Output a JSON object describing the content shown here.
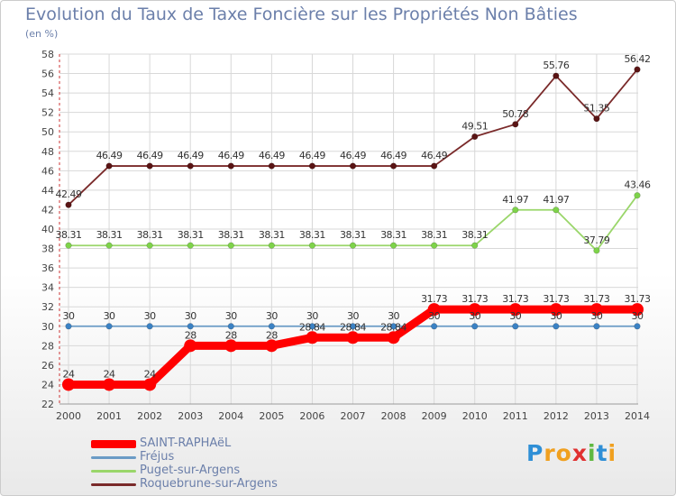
{
  "title": "Evolution du Taux de Taxe Foncière sur les Propriétés Non Bâties",
  "unit_label": "(en %)",
  "logo": {
    "text": "Proxiti",
    "letters": [
      "P",
      "r",
      "o",
      "x",
      "i",
      "t",
      "i"
    ],
    "colors": [
      "#2f8fd6",
      "#f0a020",
      "#f0a020",
      "#e03030",
      "#5fb840",
      "#2f8fd6",
      "#f0a020"
    ]
  },
  "chart_data": {
    "type": "line",
    "x": [
      "2000",
      "2001",
      "2002",
      "2003",
      "2004",
      "2005",
      "2006",
      "2007",
      "2008",
      "2009",
      "2010",
      "2011",
      "2012",
      "2013",
      "2014"
    ],
    "ylim": [
      22,
      58
    ],
    "yticks": [
      22,
      24,
      26,
      28,
      30,
      32,
      34,
      36,
      38,
      40,
      42,
      44,
      46,
      48,
      50,
      52,
      54,
      56,
      58
    ],
    "grid": true,
    "legend_position": "bottom-left",
    "series": [
      {
        "name": "SAINT-RAPHAëL",
        "color": "#ff0000",
        "style": "thick",
        "values": [
          24,
          24,
          24,
          28,
          28,
          28,
          28.84,
          28.84,
          28.84,
          31.73,
          31.73,
          31.73,
          31.73,
          31.73,
          31.73
        ],
        "labels": [
          "24",
          "24",
          "24",
          "28",
          "28",
          "28",
          "28.84",
          "28.84",
          "28.84",
          "31.73",
          "31.73",
          "31.73",
          "31.73",
          "31.73",
          "31.73"
        ]
      },
      {
        "name": "Fréjus",
        "color": "#6a9bc6",
        "point_color": "#3b82c4",
        "style": "thin",
        "values": [
          30,
          30,
          30,
          30,
          30,
          30,
          30,
          30,
          30,
          30,
          30,
          30,
          30,
          30,
          30
        ],
        "labels": [
          "30",
          "30",
          "30",
          "30",
          "30",
          "30",
          "30",
          "30",
          "30",
          "30",
          "30",
          "30",
          "30",
          "30",
          "30"
        ]
      },
      {
        "name": "Puget-sur-Argens",
        "color": "#9ad66a",
        "point_color": "#7ed34a",
        "style": "thin",
        "values": [
          38.31,
          38.31,
          38.31,
          38.31,
          38.31,
          38.31,
          38.31,
          38.31,
          38.31,
          38.31,
          38.31,
          41.97,
          41.97,
          37.79,
          43.46
        ],
        "labels": [
          "38.31",
          "38.31",
          "38.31",
          "38.31",
          "38.31",
          "38.31",
          "38.31",
          "38.31",
          "38.31",
          "38.31",
          "38.31",
          "41.97",
          "41.97",
          "37.79",
          "43.46"
        ]
      },
      {
        "name": "Roquebrune-sur-Argens",
        "color": "#7a2a2a",
        "point_color": "#5a1414",
        "style": "thin",
        "values": [
          42.49,
          46.49,
          46.49,
          46.49,
          46.49,
          46.49,
          46.49,
          46.49,
          46.49,
          46.49,
          49.51,
          50.78,
          55.76,
          51.35,
          56.42
        ],
        "labels": [
          "42.49",
          "46.49",
          "46.49",
          "46.49",
          "46.49",
          "46.49",
          "46.49",
          "46.49",
          "46.49",
          "46.49",
          "49.51",
          "50.78",
          "55.76",
          "51.35",
          "56.42"
        ]
      }
    ]
  }
}
